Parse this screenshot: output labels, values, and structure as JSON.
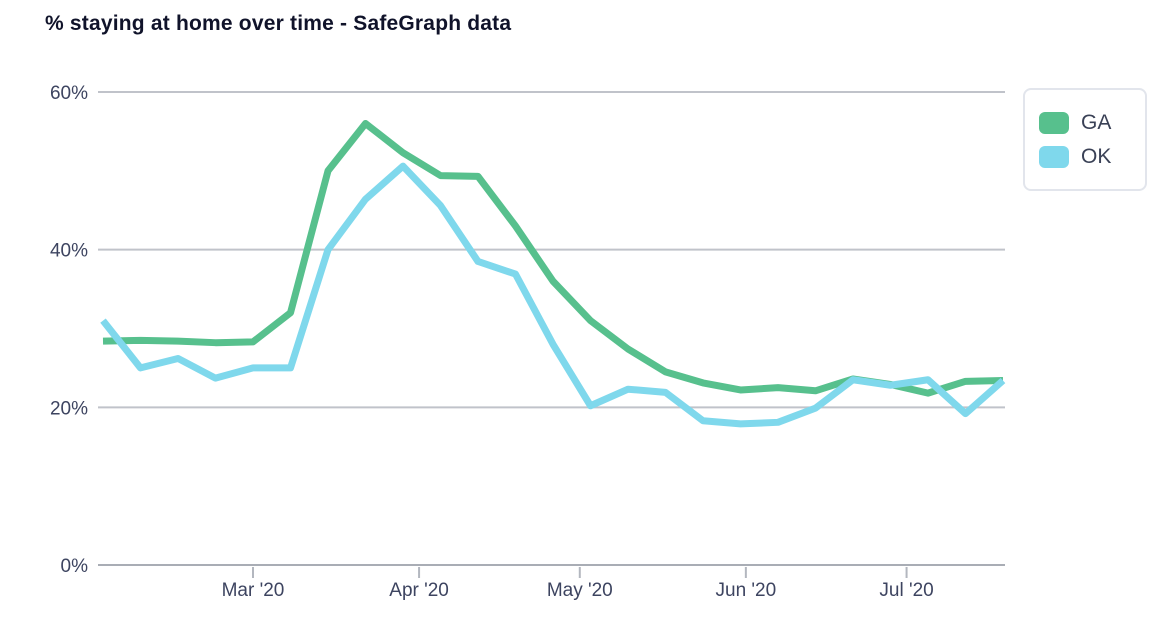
{
  "title": "% staying at home over time - SafeGraph data",
  "colors": {
    "ga_line": "#57c08d",
    "ok_line": "#7fd8ec",
    "gridline": "#c0c3ca",
    "baseline": "#a9adb5",
    "tick": "#b3b7bf",
    "axis_label": "#3d4460",
    "title_text": "#10132a",
    "legend_border": "#e2e5ec"
  },
  "legend": {
    "position": "top-right",
    "items": [
      {
        "label": "GA",
        "color": "#57c08d"
      },
      {
        "label": "OK",
        "color": "#7fd8ec"
      }
    ]
  },
  "axes": {
    "y_ticks": [
      {
        "label": "60%",
        "value": 60
      },
      {
        "label": "40%",
        "value": 40
      },
      {
        "label": "20%",
        "value": 20
      },
      {
        "label": "0%",
        "value": 0
      }
    ],
    "x_ticks": [
      {
        "label": "Mar '20",
        "week": 4
      },
      {
        "label": "Apr '20",
        "week": 8.4286
      },
      {
        "label": "May '20",
        "week": 12.7143
      },
      {
        "label": "Jun '20",
        "week": 17.1429
      },
      {
        "label": "Jul '20",
        "week": 21.4286
      }
    ]
  },
  "chart_data": {
    "type": "line",
    "title": "% staying at home over time - SafeGraph data",
    "xlabel": "",
    "ylabel": "",
    "ylim": [
      0,
      60
    ],
    "grid": true,
    "legend_position": "top-right",
    "x": [
      "Feb 2",
      "Feb 9",
      "Feb 16",
      "Feb 23",
      "Mar 1",
      "Mar 8",
      "Mar 15",
      "Mar 22",
      "Mar 29",
      "Apr 5",
      "Apr 12",
      "Apr 19",
      "Apr 26",
      "May 3",
      "May 10",
      "May 17",
      "May 24",
      "May 31",
      "Jun 7",
      "Jun 14",
      "Jun 21",
      "Jun 28",
      "Jul 5",
      "Jul 12",
      "Jul 19"
    ],
    "series": [
      {
        "name": "GA",
        "color": "#57c08d",
        "values": [
          28.4,
          28.5,
          28.4,
          28.2,
          28.3,
          32,
          50,
          56,
          52.3,
          49.4,
          49.3,
          43,
          36,
          31,
          27.4,
          24.5,
          23.1,
          22.2,
          22.5,
          22.1,
          23.6,
          22.9,
          21.8,
          23.3,
          23.4
        ]
      },
      {
        "name": "OK",
        "color": "#7fd8ec",
        "values": [
          31,
          25,
          26.2,
          23.7,
          25,
          25,
          40,
          46.4,
          50.6,
          45.6,
          38.5,
          36.9,
          28,
          20.2,
          22.3,
          21.9,
          18.3,
          17.9,
          18.1,
          19.9,
          23.5,
          22.8,
          23.5,
          19.2,
          23.4
        ]
      }
    ]
  }
}
